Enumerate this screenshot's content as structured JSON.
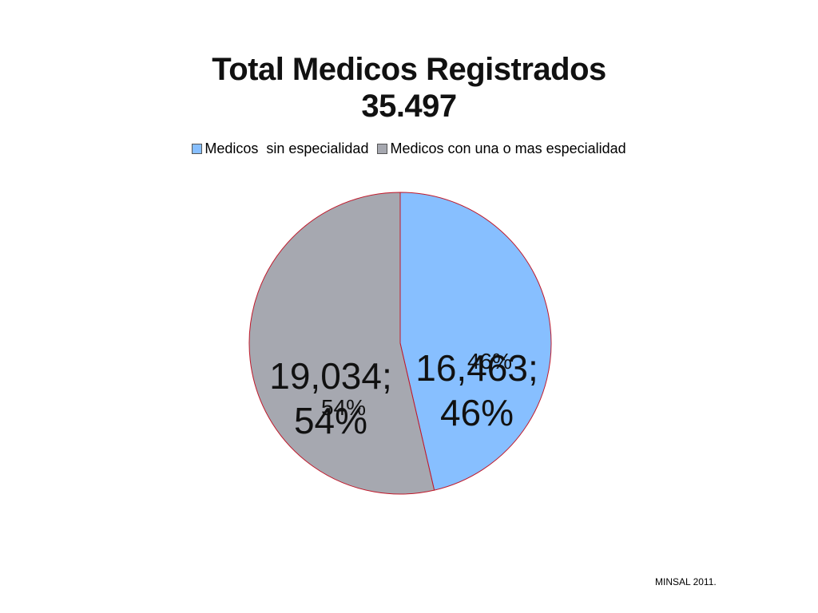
{
  "colors": {
    "sin_especialidad": "#87bfff",
    "con_especialidad": "#a6a8b0",
    "slice_border": "#c0182a"
  },
  "chart_data": {
    "type": "pie",
    "title": [
      "Total Medicos Registrados",
      "35.497"
    ],
    "legend_placement": "top",
    "series": [
      {
        "name": "Medicos  sin especialidad",
        "value": 16463,
        "label": "16,463;",
        "percent_label": "46%",
        "percent_small": "46%"
      },
      {
        "name": "Medicos con una o mas especialidad",
        "value": 19034,
        "label": "19,034;",
        "percent_label": "54%",
        "percent_small": "54%"
      }
    ]
  },
  "source": "MINSAL 2011."
}
